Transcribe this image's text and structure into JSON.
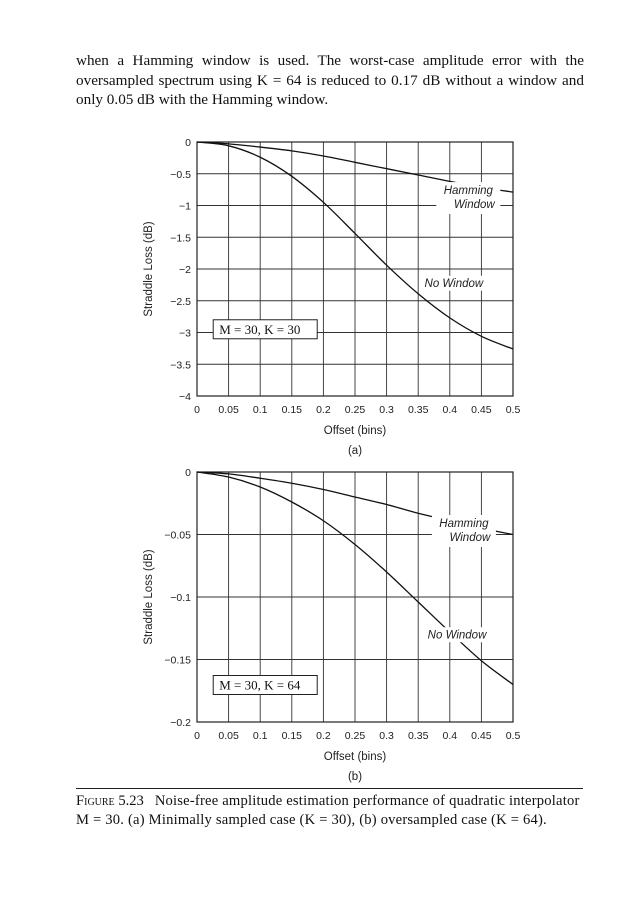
{
  "intro": {
    "text": "when a Hamming window is used. The worst-case amplitude error with the oversampled spectrum using K = 64 is reduced to 0.17 dB without a window and only 0.05 dB with the Hamming window."
  },
  "caption": {
    "number": "Figure 5.23",
    "text": "Noise-free amplitude estimation performance of quadratic interpolator M = 30. (a) Minimally sampled case (K = 30), (b) oversampled case (K = 64)."
  },
  "chart_data": [
    {
      "type": "line",
      "panel_label": "(a)",
      "xlabel": "Offset (bins)",
      "ylabel": "Straddle Loss (dB)",
      "xlim": [
        0,
        0.5
      ],
      "ylim": [
        -4,
        0
      ],
      "xticks": [
        "0",
        "0.05",
        "0.1",
        "0.15",
        "0.2",
        "0.25",
        "0.3",
        "0.35",
        "0.4",
        "0.45",
        "0.5"
      ],
      "yticks": [
        "0",
        "−0.5",
        "−1",
        "−1.5",
        "−2",
        "−2.5",
        "−3",
        "−3.5",
        "−4"
      ],
      "grid": true,
      "box_label": "M = 30, K = 30",
      "x": [
        0,
        0.05,
        0.1,
        0.15,
        0.2,
        0.25,
        0.3,
        0.35,
        0.4,
        0.45,
        0.5
      ],
      "series": [
        {
          "name": "Hamming Window",
          "values": [
            0,
            -0.03,
            -0.08,
            -0.14,
            -0.22,
            -0.32,
            -0.42,
            -0.52,
            -0.62,
            -0.71,
            -0.79
          ]
        },
        {
          "name": "No Window",
          "values": [
            0,
            -0.06,
            -0.24,
            -0.54,
            -0.95,
            -1.44,
            -1.94,
            -2.39,
            -2.77,
            -3.06,
            -3.26
          ]
        }
      ]
    },
    {
      "type": "line",
      "panel_label": "(b)",
      "xlabel": "Offset (bins)",
      "ylabel": "Straddle Loss (dB)",
      "xlim": [
        0,
        0.5
      ],
      "ylim": [
        -0.2,
        0
      ],
      "xticks": [
        "0",
        "0.05",
        "0.1",
        "0.15",
        "0.2",
        "0.25",
        "0.3",
        "0.35",
        "0.4",
        "0.45",
        "0.5"
      ],
      "yticks": [
        "0",
        "−0.05",
        "−0.1",
        "−0.15",
        "−0.2"
      ],
      "grid": true,
      "box_label": "M = 30, K = 64",
      "x": [
        0,
        0.05,
        0.1,
        0.15,
        0.2,
        0.25,
        0.3,
        0.35,
        0.4,
        0.45,
        0.5
      ],
      "series": [
        {
          "name": "Hamming Window",
          "values": [
            0,
            -0.0015,
            -0.005,
            -0.009,
            -0.014,
            -0.02,
            -0.026,
            -0.033,
            -0.039,
            -0.045,
            -0.05
          ]
        },
        {
          "name": "No Window",
          "values": [
            0,
            -0.004,
            -0.012,
            -0.024,
            -0.039,
            -0.058,
            -0.08,
            -0.104,
            -0.128,
            -0.151,
            -0.17
          ]
        }
      ]
    }
  ]
}
